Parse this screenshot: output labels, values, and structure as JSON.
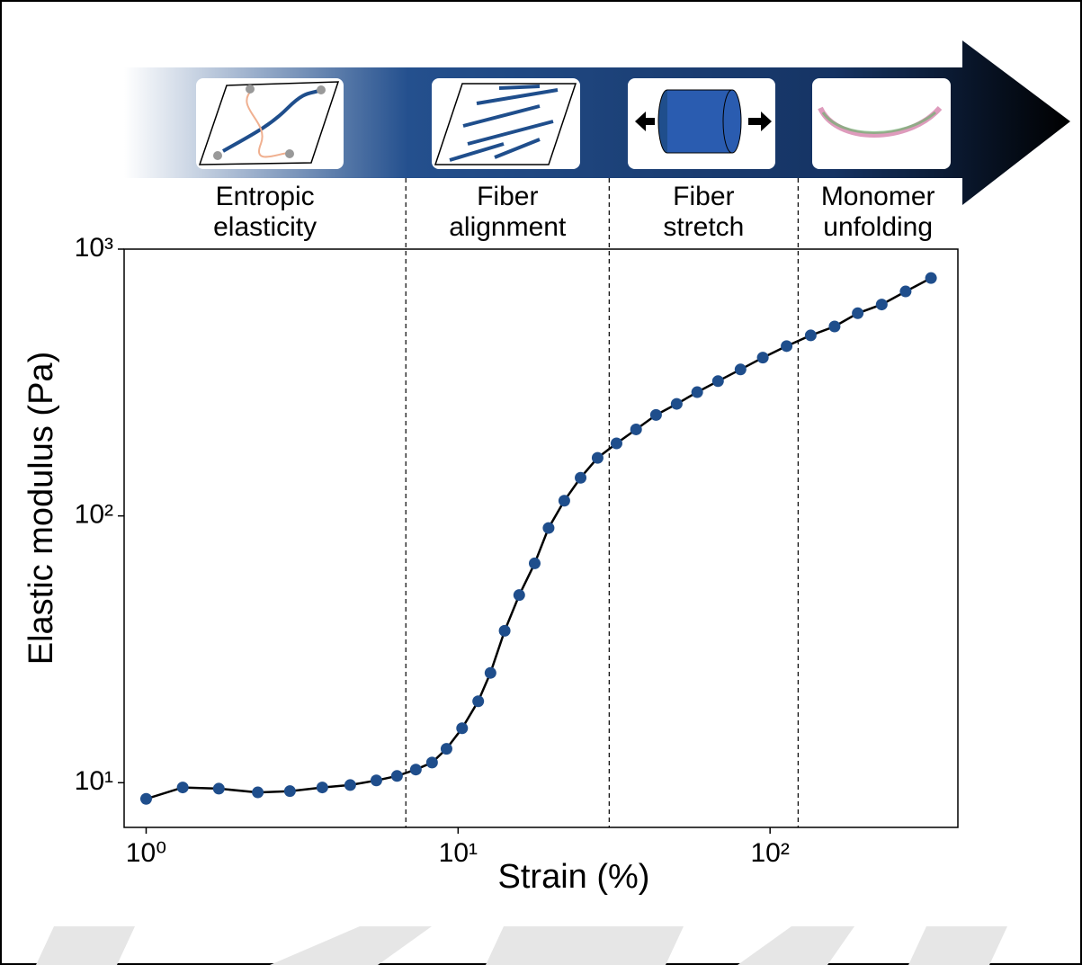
{
  "chart_data": {
    "type": "line",
    "log_x": true,
    "log_y": true,
    "xlabel": "Strain (%)",
    "ylabel": "Elastic modulus (Pa)",
    "xlim": [
      0.85,
      400
    ],
    "ylim": [
      6.8,
      1000
    ],
    "xticks": [
      {
        "value": 1,
        "label": "10⁰"
      },
      {
        "value": 10,
        "label": "10¹"
      },
      {
        "value": 100,
        "label": "10²"
      }
    ],
    "yticks": [
      {
        "value": 10,
        "label": "10¹"
      },
      {
        "value": 100,
        "label": "10²"
      },
      {
        "value": 1000,
        "label": "10³"
      }
    ],
    "line_color": "#000000",
    "marker_color": "#1f4e8c",
    "x": [
      1,
      1.31,
      1.71,
      2.28,
      2.89,
      3.67,
      4.51,
      5.47,
      6.37,
      7.32,
      8.25,
      9.18,
      10.3,
      11.6,
      12.7,
      14.1,
      15.7,
      17.6,
      19.5,
      21.9,
      24.7,
      28.0,
      32.2,
      37.2,
      43.1,
      50.2,
      58.4,
      68.1,
      80.4,
      94.8,
      113,
      135,
      161,
      191,
      228,
      272,
      328
    ],
    "values": [
      8.7,
      9.6,
      9.5,
      9.2,
      9.3,
      9.6,
      9.8,
      10.2,
      10.6,
      11.2,
      11.9,
      13.4,
      16.0,
      20.2,
      25.8,
      37.1,
      50.5,
      66.4,
      90.1,
      114,
      139,
      165,
      187,
      211,
      239,
      263,
      291,
      320,
      354,
      392,
      433,
      475,
      513,
      575,
      620,
      694,
      779
    ],
    "boundaries": [
      6.8,
      30.5,
      123
    ],
    "regions": [
      [
        "Entropic",
        "elasticity"
      ],
      [
        "Fiber",
        "alignment"
      ],
      [
        "Fiber",
        "stretch"
      ],
      [
        "Monomer",
        "unfolding"
      ]
    ]
  }
}
